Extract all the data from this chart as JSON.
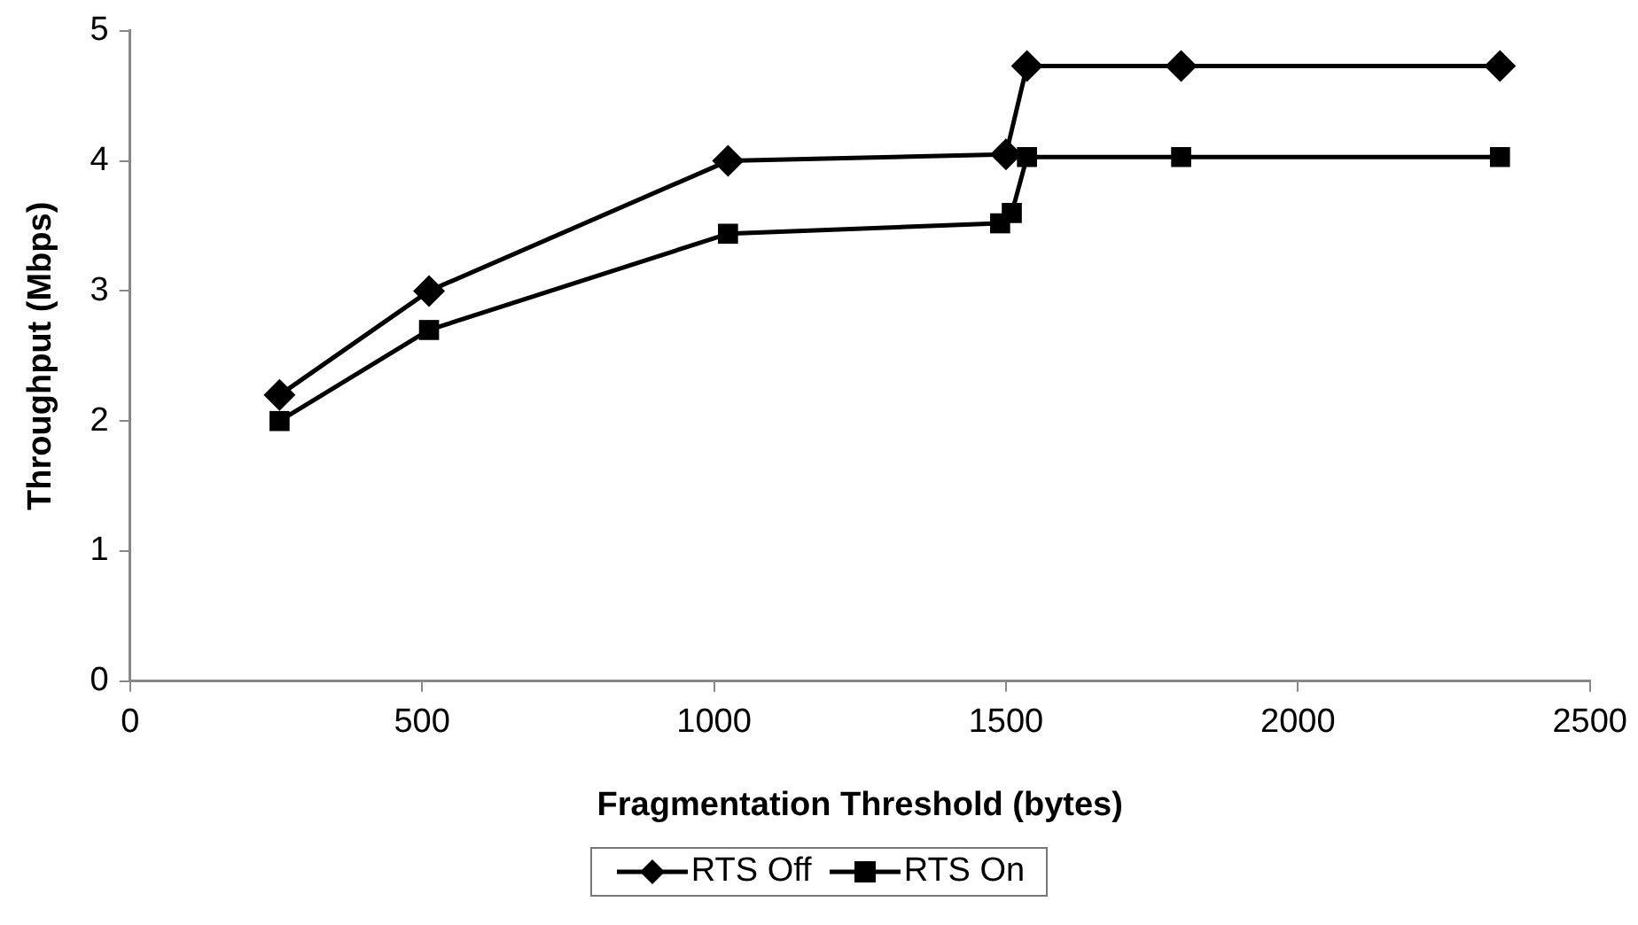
{
  "chart_data": {
    "type": "line",
    "xlabel": "Fragmentation Threshold (bytes)",
    "ylabel": "Throughput (Mbps)",
    "xlim": [
      0,
      2500
    ],
    "xticks": [
      0,
      500,
      1000,
      1500,
      2000,
      2500
    ],
    "ylim": [
      0,
      5
    ],
    "yticks": [
      0,
      1,
      2,
      3,
      4,
      5
    ],
    "grid": false,
    "legend": "bottom",
    "line_style": "solid",
    "series": [
      {
        "name": "RTS Off",
        "color": "#000000",
        "marker": "diamond",
        "x": [
          256,
          512,
          1024,
          1500,
          1536,
          1800,
          2346
        ],
        "values": [
          2.2,
          3.0,
          4.0,
          4.05,
          4.73,
          4.73,
          4.73
        ]
      },
      {
        "name": "RTS On",
        "color": "#000000",
        "marker": "square",
        "x": [
          256,
          512,
          1024,
          1490,
          1510,
          1536,
          1800,
          2346
        ],
        "values": [
          2.0,
          2.7,
          3.44,
          3.52,
          3.6,
          4.03,
          4.03,
          4.03
        ]
      }
    ]
  }
}
